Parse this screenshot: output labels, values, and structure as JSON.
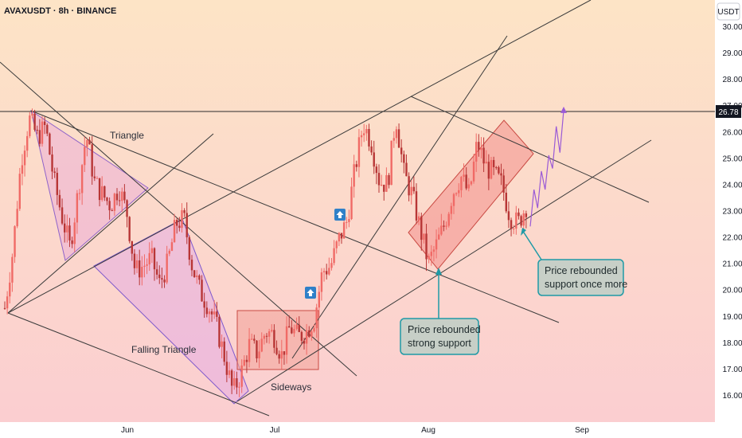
{
  "header": {
    "symbol": "AVAXUSDT · 8h · BINANCE"
  },
  "currency_badge": "USDT",
  "price_line": {
    "value": 26.78,
    "label": "26.78"
  },
  "annotations": {
    "triangle": "Triangle",
    "falling_triangle": "Falling Triangle",
    "sideways": "Sideways",
    "callout_strong": [
      "Price rebounded",
      "strong support"
    ],
    "callout_once_more": [
      "Price rebounded",
      "support once more"
    ]
  },
  "colors": {
    "bg_top": "#fde3c8",
    "bg_bottom": "#fbcfd2",
    "bull": "#ef5350",
    "bear": "#d94848",
    "pattern_fill": "#e8a6d8",
    "box_fill": "#f7a8a0",
    "callout_border": "#1f9aa6",
    "callout_fill": "#c7cfc7",
    "projection": "#9a5ad6"
  },
  "chart_data": {
    "type": "candlestick",
    "symbol": "AVAXUSDT",
    "timeframe": "8h",
    "exchange": "BINANCE",
    "ylim": [
      15.6,
      30.5
    ],
    "yticks": [
      16,
      17,
      18,
      19,
      20,
      21,
      22,
      23,
      24,
      25,
      26,
      27,
      28,
      29,
      30
    ],
    "ytick_labels": [
      "16.00",
      "17.00",
      "18.00",
      "19.00",
      "20.00",
      "21.00",
      "22.00",
      "23.00",
      "24.00",
      "25.00",
      "26.00",
      "27.00",
      "28.00",
      "29.00",
      "30.00"
    ],
    "xticks": [
      "Jun",
      "Jul",
      "Aug",
      "Sep"
    ],
    "close_path": [
      19.3,
      21.5,
      24.9,
      26.5,
      25.8,
      26.2,
      24.2,
      22.8,
      21.6,
      23.7,
      25.9,
      24.1,
      23.6,
      23.2,
      23.9,
      22.9,
      20.7,
      20.9,
      21.2,
      20.2,
      21.0,
      22.5,
      22.7,
      20.9,
      19.9,
      19.4,
      18.6,
      17.4,
      16.1,
      16.8,
      17.9,
      17.6,
      18.4,
      18.3,
      17.5,
      18.6,
      18.2,
      18.4,
      18.9,
      20.7,
      20.9,
      21.9,
      22.6,
      24.6,
      26.3,
      25.6,
      24.1,
      24.0,
      26.6,
      24.4,
      23.6,
      22.3,
      21.0,
      21.7,
      22.5,
      23.7,
      24.3,
      23.6,
      25.6,
      24.7,
      24.4,
      24.0,
      22.8,
      22.5,
      23.2
    ],
    "price_line": 26.78,
    "projection": [
      22.4,
      23.8,
      23.1,
      24.5,
      23.8,
      25.1,
      24.6,
      26.2,
      25.2,
      26.8
    ]
  }
}
